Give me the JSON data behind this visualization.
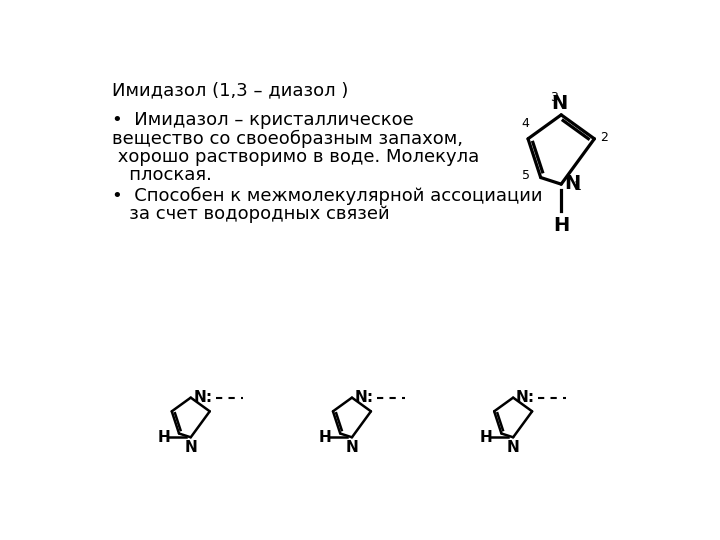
{
  "title": "Имидазол (1,3 – диазол )",
  "b1l1": "•  Имидазол – кристаллическое",
  "b1l2": "вещество со своеобразным запахом,",
  "b1l3": " хорошо растворимо в воде. Молекула",
  "b1l4": "   плоская.",
  "b2l1": "•  Способен к межмолекулярной ассоциации",
  "b2l2": "   за счет водородных связей",
  "bg_color": "#ffffff",
  "text_color": "#000000",
  "font_size": 13
}
